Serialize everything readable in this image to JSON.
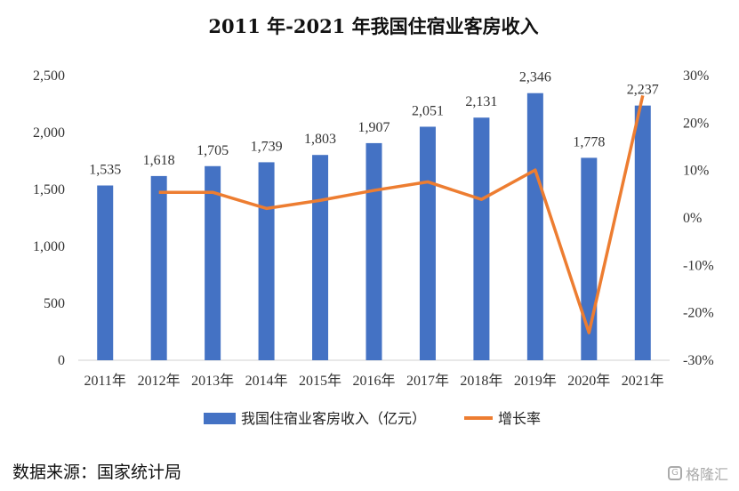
{
  "chart_data": {
    "type": "bar",
    "title": "2011 年-2021 年我国住宿业客房收入",
    "categories": [
      "2011年",
      "2012年",
      "2013年",
      "2014年",
      "2015年",
      "2016年",
      "2017年",
      "2018年",
      "2019年",
      "2020年",
      "2021年"
    ],
    "series": [
      {
        "name": "我国住宿业客房收入（亿元）",
        "type": "bar",
        "axis": "left",
        "color": "#4472C4",
        "values": [
          1535,
          1618,
          1705,
          1739,
          1803,
          1907,
          2051,
          2131,
          2346,
          1778,
          2237
        ]
      },
      {
        "name": "增长率",
        "type": "line",
        "axis": "right",
        "color": "#ED7D31",
        "values": [
          null,
          5.4,
          5.4,
          2.0,
          3.7,
          5.8,
          7.6,
          3.9,
          10.1,
          -24.2,
          25.8
        ]
      }
    ],
    "data_labels": [
      "1,535",
      "1,618",
      "1,705",
      "1,739",
      "1,803",
      "1,907",
      "2,051",
      "2,131",
      "2,346",
      "1,778",
      "2,237"
    ],
    "y_left": {
      "ticks": [
        "0",
        "500",
        "1,000",
        "1,500",
        "2,000",
        "2,500"
      ],
      "min": 0,
      "max": 2500
    },
    "y_right": {
      "ticks": [
        "-30%",
        "-20%",
        "-10%",
        "0%",
        "10%",
        "20%",
        "30%"
      ],
      "min": -30,
      "max": 30
    },
    "grid": false,
    "legend_position": "bottom"
  },
  "source_text": "数据来源：国家统计局",
  "watermark_text": "格隆汇"
}
